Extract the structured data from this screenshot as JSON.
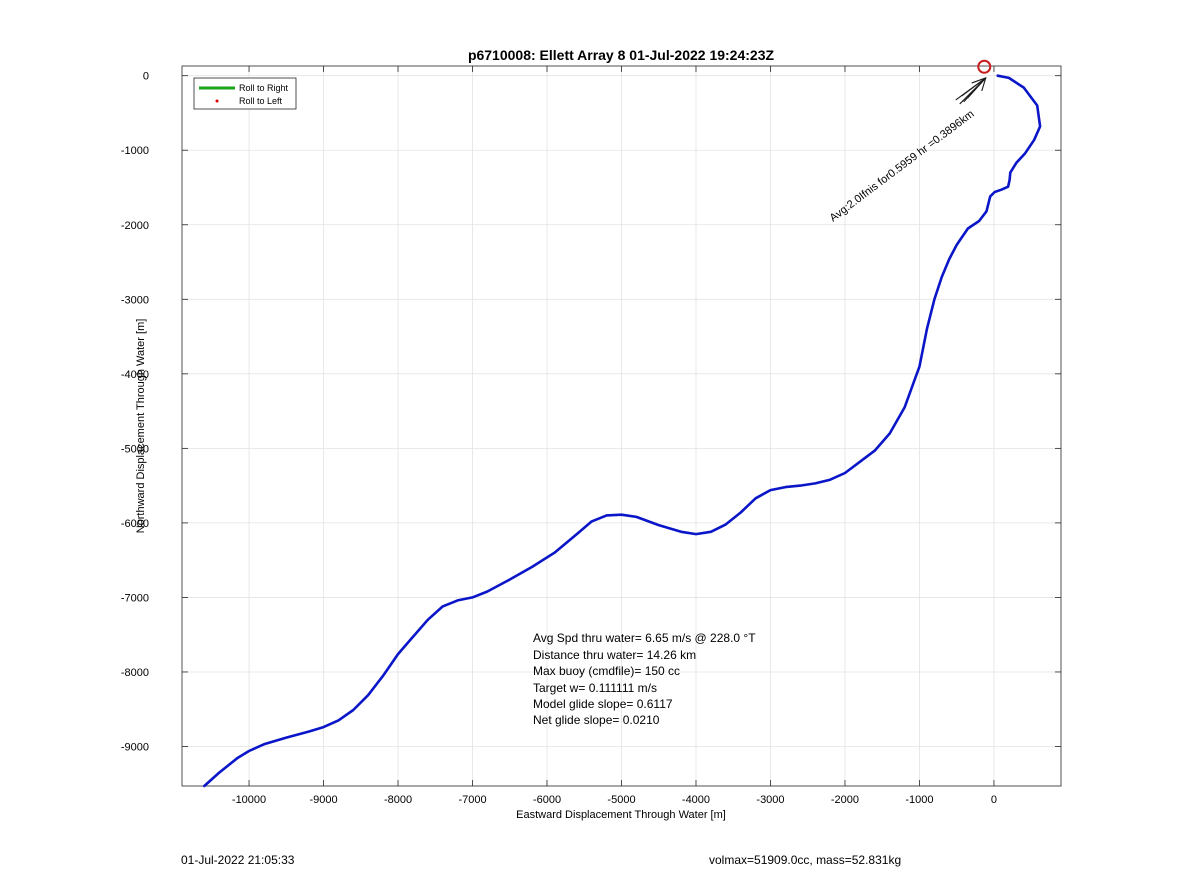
{
  "chart_data": {
    "type": "line",
    "title": "p6710008: Ellett Array 8 01-Jul-2022 19:24:23Z",
    "xlabel": "Eastward Displacement Through Water [m]",
    "ylabel": "Northward Displacement Through Water [m]",
    "xlim": [
      -10900,
      900
    ],
    "ylim": [
      -9530,
      130
    ],
    "xticks": [
      -10000,
      -9000,
      -8000,
      -7000,
      -6000,
      -5000,
      -4000,
      -3000,
      -2000,
      -1000,
      0
    ],
    "yticks": [
      0,
      -1000,
      -2000,
      -3000,
      -4000,
      -5000,
      -6000,
      -7000,
      -8000,
      -9000
    ],
    "grid": true,
    "legend_position": "top-left",
    "legend": [
      {
        "label": "Roll to Right",
        "color": "#1aa51a",
        "style": "line"
      },
      {
        "label": "Roll to Left",
        "color": "#e00000",
        "style": "dot"
      }
    ],
    "series": [
      {
        "color": "#0a16c8",
        "points": [
          [
            -10600,
            -9530
          ],
          [
            -10400,
            -9350
          ],
          [
            -10150,
            -9150
          ],
          [
            -10000,
            -9060
          ],
          [
            -9800,
            -8970
          ],
          [
            -9500,
            -8880
          ],
          [
            -9200,
            -8800
          ],
          [
            -9000,
            -8740
          ],
          [
            -8800,
            -8650
          ],
          [
            -8600,
            -8510
          ],
          [
            -8400,
            -8310
          ],
          [
            -8200,
            -8050
          ],
          [
            -8000,
            -7760
          ],
          [
            -7800,
            -7530
          ],
          [
            -7600,
            -7300
          ],
          [
            -7400,
            -7120
          ],
          [
            -7200,
            -7040
          ],
          [
            -7000,
            -7000
          ],
          [
            -6800,
            -6920
          ],
          [
            -6500,
            -6760
          ],
          [
            -6200,
            -6590
          ],
          [
            -5900,
            -6400
          ],
          [
            -5600,
            -6150
          ],
          [
            -5400,
            -5980
          ],
          [
            -5200,
            -5900
          ],
          [
            -5000,
            -5890
          ],
          [
            -4800,
            -5920
          ],
          [
            -4500,
            -6030
          ],
          [
            -4200,
            -6120
          ],
          [
            -4000,
            -6150
          ],
          [
            -3800,
            -6120
          ],
          [
            -3600,
            -6020
          ],
          [
            -3400,
            -5860
          ],
          [
            -3200,
            -5670
          ],
          [
            -3000,
            -5560
          ],
          [
            -2800,
            -5520
          ],
          [
            -2600,
            -5500
          ],
          [
            -2400,
            -5470
          ],
          [
            -2200,
            -5420
          ],
          [
            -2000,
            -5330
          ],
          [
            -1800,
            -5180
          ],
          [
            -1600,
            -5030
          ],
          [
            -1400,
            -4800
          ],
          [
            -1200,
            -4450
          ],
          [
            -1000,
            -3900
          ],
          [
            -900,
            -3400
          ],
          [
            -800,
            -3000
          ],
          [
            -700,
            -2700
          ],
          [
            -600,
            -2460
          ],
          [
            -500,
            -2270
          ],
          [
            -350,
            -2050
          ],
          [
            -200,
            -1950
          ],
          [
            -100,
            -1820
          ],
          [
            -70,
            -1700
          ],
          [
            -50,
            -1620
          ],
          [
            10,
            -1560
          ],
          [
            100,
            -1530
          ],
          [
            190,
            -1490
          ],
          [
            210,
            -1400
          ],
          [
            220,
            -1300
          ],
          [
            300,
            -1170
          ],
          [
            420,
            -1040
          ],
          [
            540,
            -860
          ],
          [
            620,
            -680
          ],
          [
            580,
            -400
          ],
          [
            400,
            -160
          ],
          [
            200,
            -30
          ],
          [
            50,
            0
          ]
        ]
      }
    ],
    "marker": {
      "x": -130,
      "y": 120,
      "color": "#c81e1e",
      "shape": "circle"
    },
    "annotations": {
      "rotated_label": "Avg:2.0Ifnis for0.5959 hr =0.3896km",
      "stats_lines": [
        "Avg Spd thru water=  6.65 m/s @ 228.0 °T",
        "Distance thru water= 14.26 km",
        "Max buoy (cmdfile)= 150 cc",
        "Target w= 0.111111 m/s",
        "Model glide slope= 0.6117",
        "Net glide slope= 0.0210"
      ]
    }
  },
  "footer": {
    "timestamp": "01-Jul-2022 21:05:33",
    "summary": "volmax=51909.0cc, mass=52.831kg"
  }
}
